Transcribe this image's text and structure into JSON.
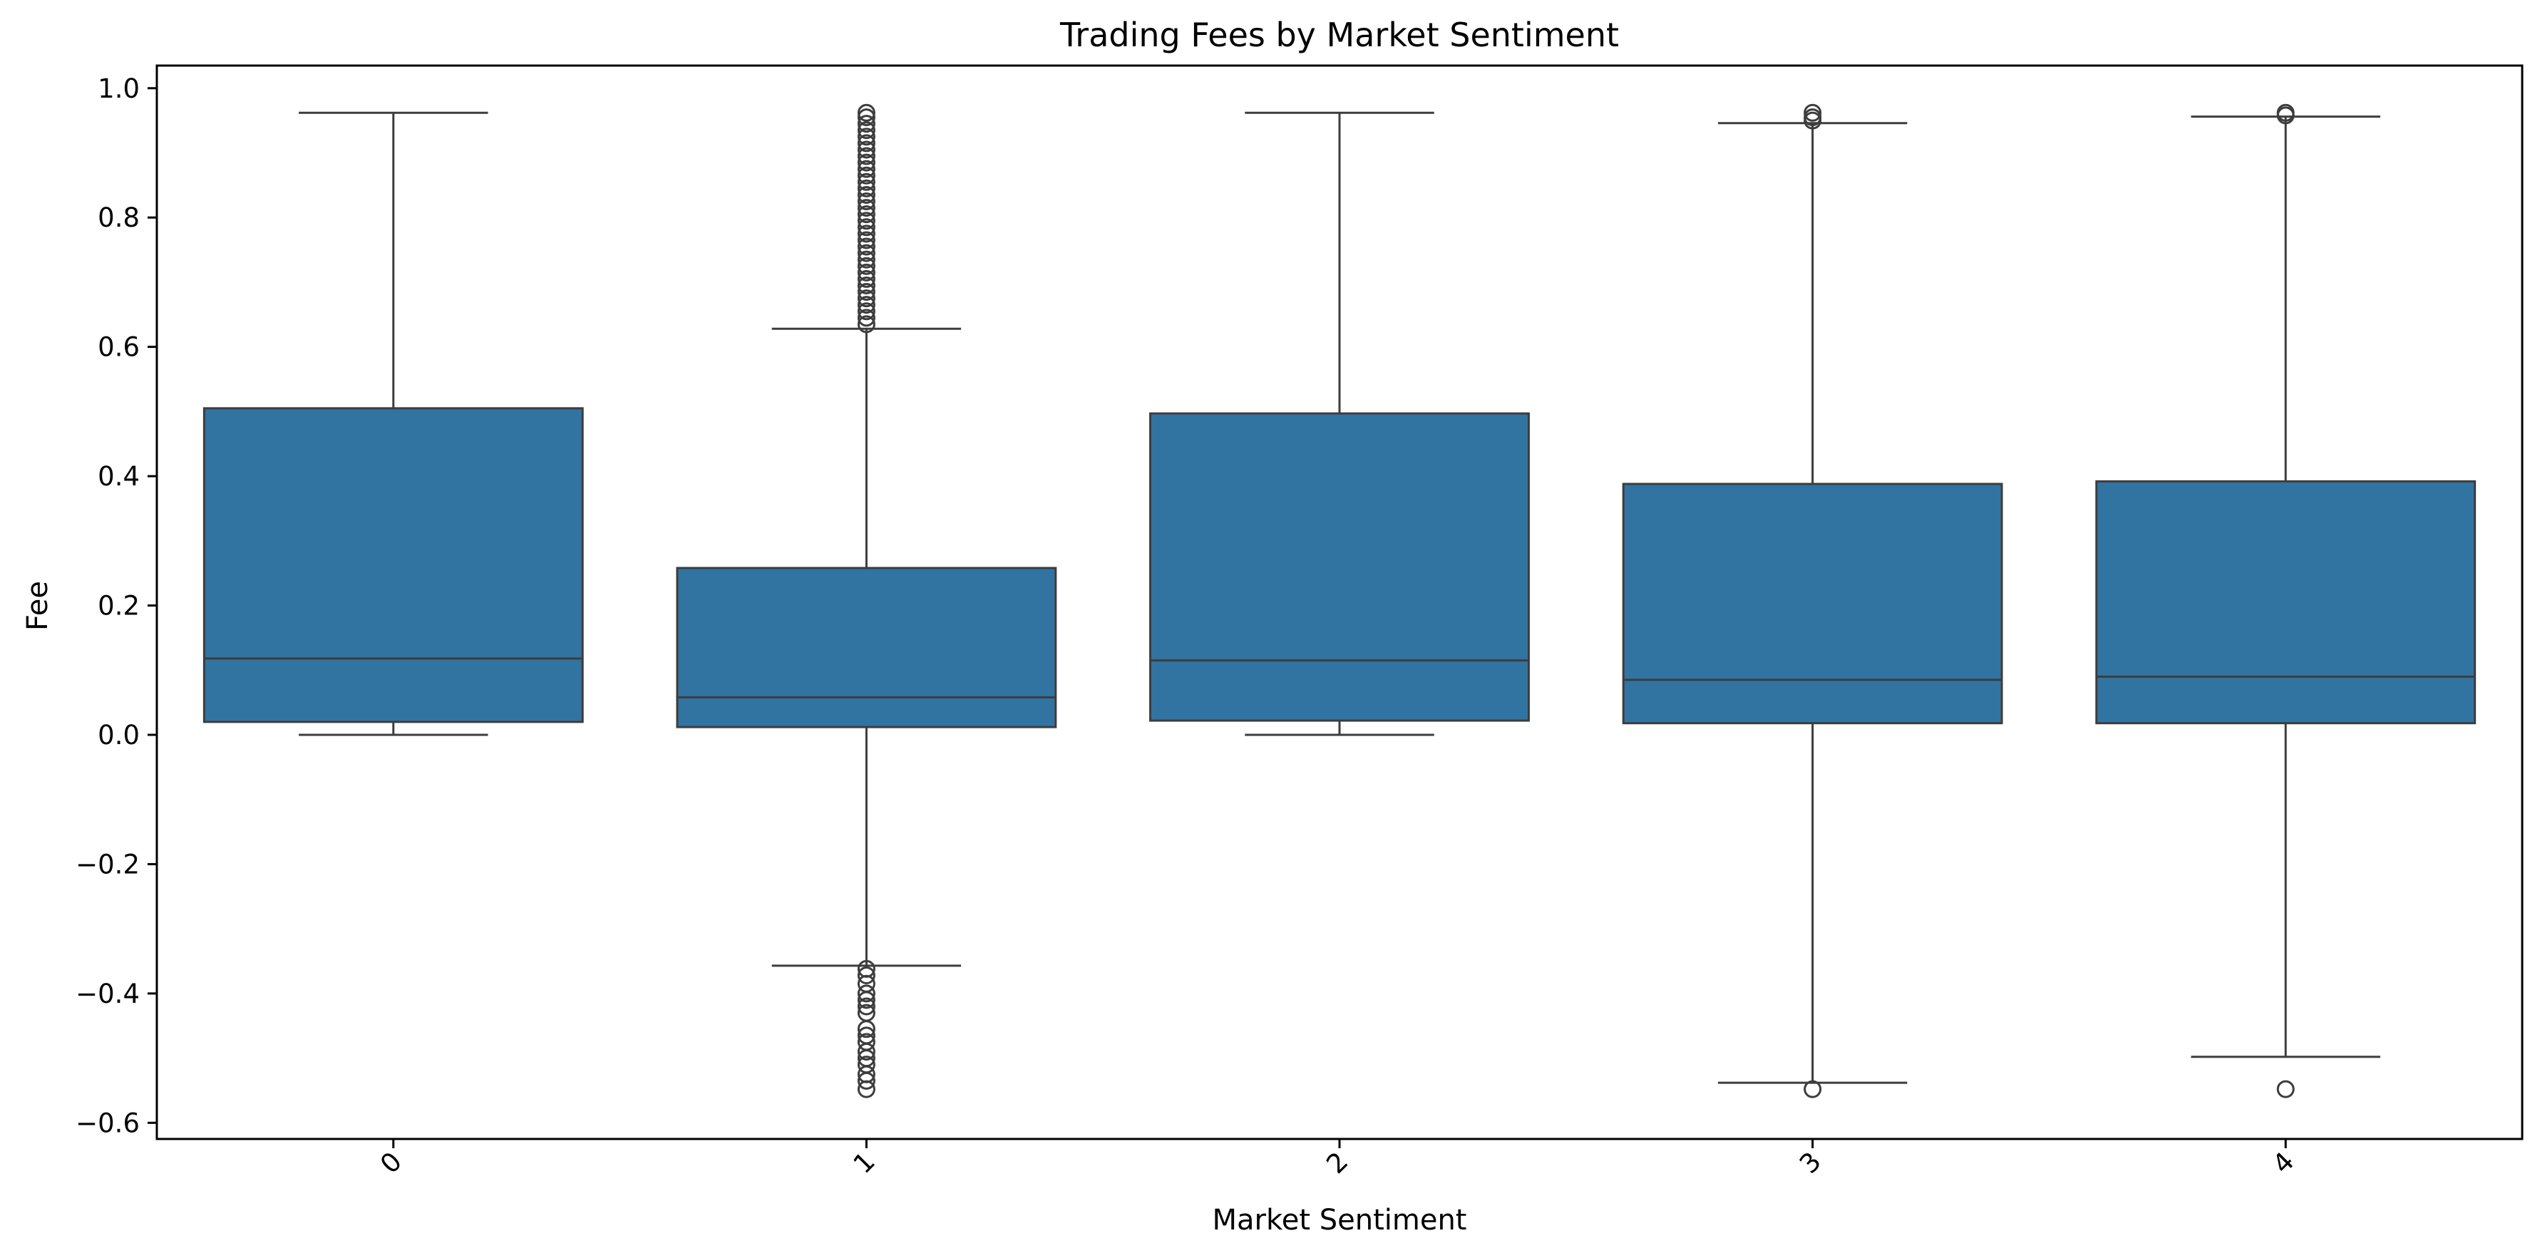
{
  "chart_data": {
    "type": "box",
    "title": "Trading Fees by Market Sentiment",
    "xlabel": "Market Sentiment",
    "ylabel": "Fee",
    "ylim": [
      -0.625,
      1.035
    ],
    "yticks": [
      -0.6,
      -0.4,
      -0.2,
      0.0,
      0.2,
      0.4,
      0.6,
      0.8,
      1.0
    ],
    "ytick_labels": [
      "−0.6",
      "−0.4",
      "−0.2",
      "0.0",
      "0.2",
      "0.4",
      "0.6",
      "0.8",
      "1.0"
    ],
    "categories": [
      "0",
      "1",
      "2",
      "3",
      "4"
    ],
    "grid": false,
    "colors": {
      "box_fill": "#3274a1",
      "line": "#3d3d3d",
      "axis": "#000000"
    },
    "boxes": [
      {
        "category": "0",
        "whisker_low": 0.0,
        "q1": 0.02,
        "median": 0.118,
        "q3": 0.505,
        "whisker_high": 0.962,
        "outliers": []
      },
      {
        "category": "1",
        "whisker_low": -0.357,
        "q1": 0.012,
        "median": 0.058,
        "q3": 0.258,
        "whisker_high": 0.628,
        "outliers": [
          0.962,
          0.955,
          0.945,
          0.935,
          0.925,
          0.915,
          0.905,
          0.895,
          0.885,
          0.875,
          0.865,
          0.855,
          0.845,
          0.835,
          0.825,
          0.815,
          0.805,
          0.795,
          0.785,
          0.775,
          0.765,
          0.755,
          0.745,
          0.735,
          0.725,
          0.715,
          0.705,
          0.695,
          0.685,
          0.675,
          0.665,
          0.655,
          0.645,
          0.635,
          -0.362,
          -0.372,
          -0.385,
          -0.4,
          -0.41,
          -0.42,
          -0.43,
          -0.455,
          -0.465,
          -0.475,
          -0.49,
          -0.5,
          -0.51,
          -0.525,
          -0.535,
          -0.548
        ]
      },
      {
        "category": "2",
        "whisker_low": 0.0,
        "q1": 0.022,
        "median": 0.115,
        "q3": 0.497,
        "whisker_high": 0.962,
        "outliers": []
      },
      {
        "category": "3",
        "whisker_low": -0.538,
        "q1": 0.018,
        "median": 0.085,
        "q3": 0.388,
        "whisker_high": 0.946,
        "outliers": [
          0.962,
          0.955,
          0.95,
          -0.548
        ]
      },
      {
        "category": "4",
        "whisker_low": -0.498,
        "q1": 0.018,
        "median": 0.09,
        "q3": 0.392,
        "whisker_high": 0.956,
        "outliers": [
          0.962,
          0.958,
          -0.548
        ]
      }
    ]
  }
}
